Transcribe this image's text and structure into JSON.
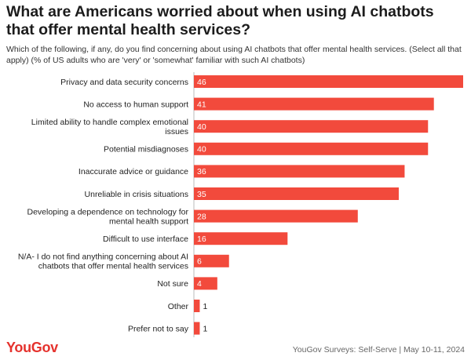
{
  "title": "What are Americans worried about when using AI chatbots that offer mental health services?",
  "subtitle": "Which of the following, if any, do you find concerning about using AI chatbots that offer mental health services. (Select all that apply) (% of US adults who are 'very' or 'somewhat' familiar with such AI chatbots)",
  "footer": {
    "logo": "YouGov",
    "source": "YouGov Surveys: Self-Serve | May 10-11, 2024"
  },
  "colors": {
    "bar": "#f24a3c",
    "label_inside": "#ffffff",
    "label_outside": "#1f1f1f",
    "axis_line": "#bbbbbb"
  },
  "chart_data": {
    "type": "bar",
    "orientation": "horizontal",
    "categories": [
      [
        "Privacy and data security concerns"
      ],
      [
        "No access to human support"
      ],
      [
        "Limited ability to handle complex emotional",
        "issues"
      ],
      [
        "Potential misdiagnoses"
      ],
      [
        "Inaccurate advice or guidance"
      ],
      [
        "Unreliable in crisis situations"
      ],
      [
        "Developing a dependence on technology for",
        "mental health support"
      ],
      [
        "Difficult to use interface"
      ],
      [
        "N/A- I do not find anything concerning about AI",
        "chatbots that offer mental health services"
      ],
      [
        "Not sure"
      ],
      [
        "Other"
      ],
      [
        "Prefer not to say"
      ]
    ],
    "values": [
      46,
      41,
      40,
      40,
      36,
      35,
      28,
      16,
      6,
      4,
      1,
      1
    ],
    "data_labels": true,
    "xlim": [
      0,
      46
    ]
  }
}
